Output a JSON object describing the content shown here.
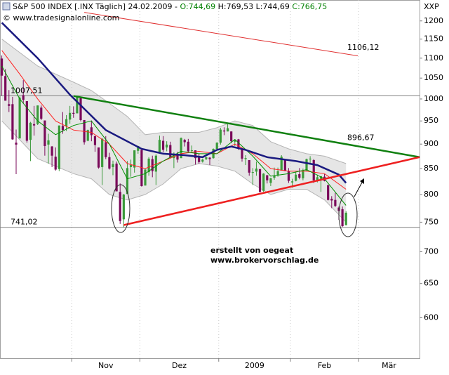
{
  "chart_data": {
    "type": "candlestick",
    "header": [
      {
        "text": "S&P 500 INDEX [.INX  Täglich] 24.02.2009 - ",
        "color": "#000000"
      },
      {
        "text": "O:744,69",
        "color": "#008000"
      },
      {
        "text": " H:769,53 L:744,69 ",
        "color": "#000000"
      },
      {
        "text": "C:766,75",
        "color": "#008000"
      }
    ],
    "watermark": "© www.tradesignalonline.com",
    "ylabel": "XXP",
    "annotations": [
      "erstellt von oegeat",
      "www.brokervorschlag.de"
    ],
    "annotation_color": "#00008b",
    "log_scale": true,
    "ylim": [
      546,
      1260
    ],
    "yticks": [
      600,
      650,
      700,
      750,
      800,
      850,
      900,
      950,
      1000,
      1050,
      1100,
      1150,
      1200
    ],
    "xlim": [
      -0.5,
      116.5
    ],
    "xticks": [
      19.5,
      38.5,
      60.5,
      80.5,
      99.5
    ],
    "months": [
      "Nov",
      "Dez",
      "2009",
      "Feb",
      "Mär"
    ],
    "up_color": "#3a9a3a",
    "down_color": "#7a0a5a",
    "open": [
      1099,
      1055,
      988,
      988,
      903,
      912,
      1009,
      995,
      909,
      943,
      943,
      980,
      951,
      899,
      895,
      874,
      849,
      939,
      939,
      953,
      968,
      967,
      1002,
      952,
      907,
      936,
      917,
      893,
      853,
      904,
      873,
      853,
      860,
      805,
      755,
      801,
      853,
      852,
      886,
      888,
      817,
      843,
      869,
      844,
      882,
      907,
      893,
      898,
      871,
      880,
      871,
      909,
      905,
      887,
      887,
      874,
      864,
      869,
      872,
      871,
      890,
      903,
      929,
      927,
      927,
      905,
      910,
      890,
      869,
      867,
      842,
      844,
      849,
      807,
      837,
      822,
      832,
      837,
      846,
      868,
      845,
      823,
      826,
      839,
      831,
      846,
      869,
      867,
      827,
      830,
      834,
      818,
      792,
      790,
      776,
      773,
      744.69
    ],
    "high": [
      1107,
      1072,
      1021,
      1005,
      931,
      1006,
      1045,
      995,
      948,
      984,
      985,
      985,
      951,
      922,
      896,
      893,
      940,
      970,
      963,
      984,
      983,
      1007,
      1003,
      952,
      931,
      951,
      917,
      893,
      913,
      917,
      882,
      866,
      864,
      821,
      801,
      865,
      868,
      887,
      896,
      888,
      850,
      873,
      876,
      879,
      918,
      917,
      906,
      905,
      883,
      884,
      914,
      911,
      911,
      897,
      887,
      880,
      870,
      873,
      873,
      891,
      904,
      935,
      936,
      943,
      927,
      910,
      911,
      890,
      877,
      867,
      851,
      864,
      849,
      841,
      837,
      832,
      852,
      852,
      877,
      868,
      851,
      830,
      843,
      851,
      850,
      870,
      875,
      869,
      838,
      835,
      839,
      818,
      797,
      803,
      778,
      778,
      769.53
    ],
    "low": [
      1008,
      996,
      970,
      909,
      839,
      912,
      990,
      903,
      865,
      918,
      941,
      952,
      876,
      860,
      853,
      846,
      845,
      922,
      928,
      944,
      957,
      967,
      949,
      899,
      906,
      906,
      884,
      850,
      818,
      869,
      848,
      837,
      806,
      747,
      741,
      801,
      834,
      842,
      880,
      815,
      817,
      836,
      833,
      818,
      882,
      883,
      885,
      871,
      851,
      862,
      871,
      895,
      882,
      882,
      858,
      860,
      862,
      867,
      857,
      870,
      890,
      899,
      919,
      927,
      902,
      896,
      888,
      864,
      857,
      836,
      818,
      836,
      804,
      805,
      821,
      816,
      828,
      834,
      846,
      845,
      822,
      813,
      825,
      829,
      827,
      845,
      861,
      822,
      823,
      805,
      825,
      789,
      775,
      777,
      754,
      742,
      744.69
    ],
    "close": [
      1056,
      996,
      984,
      910,
      899,
      1003,
      998,
      907,
      946,
      940,
      985,
      955,
      896,
      908,
      876,
      848,
      940,
      930,
      954,
      968,
      966,
      1005,
      952,
      904,
      930,
      919,
      898,
      852,
      911,
      873,
      850,
      859,
      806,
      752,
      800,
      851,
      857,
      887,
      896,
      816,
      848,
      870,
      845,
      876,
      909,
      888,
      899,
      873,
      879,
      868,
      913,
      904,
      885,
      887,
      871,
      863,
      868,
      873,
      869,
      890,
      903,
      931,
      927,
      934,
      906,
      909,
      890,
      870,
      871,
      842,
      843,
      850,
      805,
      840,
      827,
      831,
      836,
      845,
      874,
      845,
      826,
      825,
      838,
      832,
      845,
      869,
      870,
      827,
      833,
      835,
      826,
      790,
      789,
      779,
      770,
      743,
      766.75
    ],
    "band": {
      "color": "#e6e6e6",
      "edge": "#b4b4b4",
      "x": [
        0,
        10,
        20,
        25,
        30,
        35,
        40,
        45,
        50,
        55,
        60,
        65,
        70,
        75,
        80,
        85,
        90,
        96
      ],
      "upper": [
        1150,
        1080,
        1040,
        1020,
        990,
        960,
        920,
        925,
        925,
        925,
        935,
        950,
        940,
        905,
        890,
        880,
        875,
        860
      ],
      "lower": [
        950,
        870,
        840,
        830,
        800,
        790,
        800,
        820,
        850,
        860,
        855,
        845,
        820,
        800,
        810,
        810,
        790,
        750
      ]
    },
    "series": [
      {
        "color": "#ff2020",
        "width": 1,
        "x": [
          0,
          5,
          10,
          15,
          20,
          25,
          30,
          35,
          40,
          45,
          50,
          55,
          60,
          65,
          70,
          75,
          80,
          85,
          90,
          96
        ],
        "values": [
          1120,
          1060,
          1000,
          950,
          930,
          925,
          900,
          860,
          850,
          865,
          880,
          885,
          880,
          900,
          880,
          850,
          845,
          845,
          840,
          810
        ]
      },
      {
        "color": "#009000",
        "width": 1,
        "x": [
          0,
          5,
          10,
          15,
          20,
          25,
          30,
          35,
          40,
          45,
          50,
          55,
          60,
          65,
          70,
          75,
          80,
          85,
          90,
          96
        ],
        "values": [
          1080,
          1000,
          950,
          920,
          940,
          950,
          900,
          830,
          840,
          865,
          885,
          880,
          880,
          910,
          875,
          835,
          840,
          848,
          830,
          780
        ]
      },
      {
        "color": "#1a1a80",
        "width": 2.5,
        "x": [
          0,
          10,
          19,
          29,
          39,
          45,
          51,
          56,
          60,
          64,
          68,
          74,
          82,
          88,
          94,
          96
        ],
        "values": [
          1195,
          1100,
          1010,
          930,
          890,
          880,
          877,
          873,
          888,
          895,
          888,
          873,
          865,
          857,
          838,
          822
        ]
      }
    ],
    "levels": [
      {
        "value": 1007.51,
        "label": "1007,51"
      },
      {
        "value": 741.02,
        "label": "741,02"
      }
    ],
    "level_color": "#808080",
    "trendlines": [
      {
        "x": [
          23,
          99.3
        ],
        "values": [
          1224,
          1106
        ],
        "color": "#e03030",
        "width": 1,
        "label": "1106,12"
      },
      {
        "x": [
          20,
          116.5
        ],
        "values": [
          1007,
          873
        ],
        "color": "#108010",
        "width": 2.5,
        "label": "896,67"
      },
      {
        "x": [
          34,
          116.5
        ],
        "values": [
          745,
          873
        ],
        "color": "#ee2020",
        "width": 2.5
      }
    ]
  }
}
